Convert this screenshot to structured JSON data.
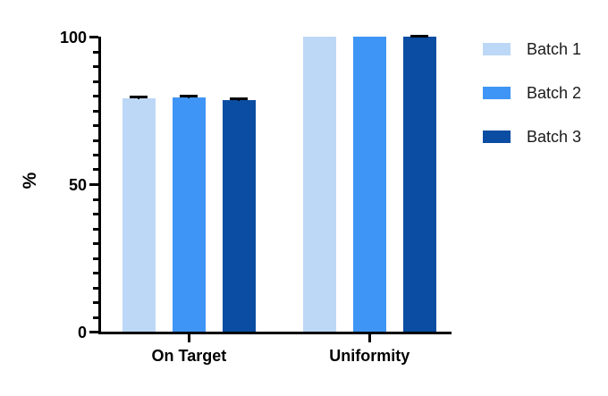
{
  "chart_data": {
    "type": "bar",
    "title": "",
    "ylabel": "%",
    "xlabel": "",
    "ylim": [
      0,
      100
    ],
    "yticks_major": [
      0,
      50,
      100
    ],
    "ytick_minor_step": 5,
    "categories": [
      "On Target",
      "Uniformity"
    ],
    "series": [
      {
        "name": "Batch 1",
        "color": "#BDD8F7",
        "values": [
          79.0,
          100
        ],
        "errors": [
          0.7,
          0
        ]
      },
      {
        "name": "Batch 2",
        "color": "#3F95F5",
        "values": [
          79.5,
          100
        ],
        "errors": [
          0.6,
          0
        ]
      },
      {
        "name": "Batch 3",
        "color": "#0B4DA2",
        "values": [
          78.5,
          100
        ],
        "errors": [
          0.5,
          0.4
        ]
      }
    ],
    "error_bar_color": "#000000",
    "axis_color": "#000000",
    "text_color": "#000000",
    "legend_position": "right",
    "grid": false
  }
}
